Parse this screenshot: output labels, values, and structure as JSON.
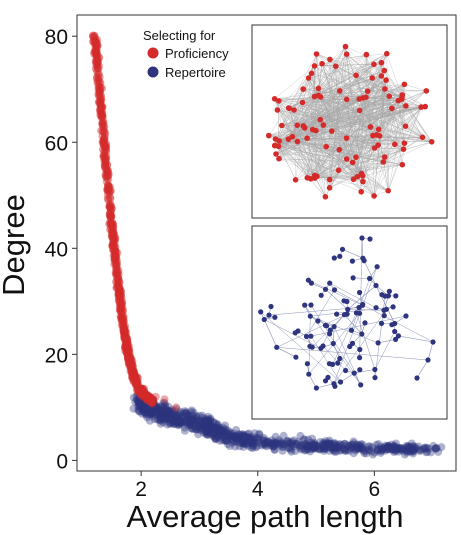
{
  "chart_data": {
    "type": "scatter",
    "xlabel": "Average path length",
    "ylabel": "Degree",
    "xlim": [
      0.9,
      7.4
    ],
    "ylim": [
      -2,
      84
    ],
    "xticks": [
      "2",
      "4",
      "6"
    ],
    "xtick_values": [
      2,
      4,
      6
    ],
    "yticks": [
      "0",
      "20",
      "40",
      "60",
      "80"
    ],
    "ytick_values": [
      0,
      20,
      40,
      60,
      80
    ],
    "legend": {
      "title": "Selecting for",
      "placement": "top-center",
      "entries": [
        {
          "label": "Proficiency",
          "color": "#d42a2a"
        },
        {
          "label": "Repertoire",
          "color": "#2e357e"
        }
      ]
    },
    "series": [
      {
        "name": "Proficiency",
        "color": "#d42a2a",
        "curve_points": [
          [
            1.2,
            80
          ],
          [
            1.25,
            74
          ],
          [
            1.3,
            68
          ],
          [
            1.35,
            62
          ],
          [
            1.4,
            56
          ],
          [
            1.45,
            50
          ],
          [
            1.5,
            44
          ],
          [
            1.55,
            39
          ],
          [
            1.6,
            34
          ],
          [
            1.65,
            29
          ],
          [
            1.7,
            25
          ],
          [
            1.75,
            22
          ],
          [
            1.8,
            19
          ],
          [
            1.85,
            17
          ],
          [
            1.9,
            15
          ],
          [
            2.0,
            13
          ],
          [
            2.1,
            12
          ],
          [
            2.2,
            11
          ]
        ]
      },
      {
        "name": "Repertoire",
        "color": "#2e357e",
        "curve_points": [
          [
            2.0,
            11
          ],
          [
            2.3,
            9
          ],
          [
            2.6,
            8
          ],
          [
            3.0,
            7
          ],
          [
            3.2,
            6
          ],
          [
            3.4,
            5
          ],
          [
            3.7,
            4
          ],
          [
            4.0,
            3.5
          ],
          [
            4.5,
            3
          ],
          [
            5.0,
            2.7
          ],
          [
            5.5,
            2.5
          ],
          [
            6.0,
            2.3
          ],
          [
            6.5,
            2.2
          ],
          [
            7.0,
            2.1
          ]
        ]
      }
    ],
    "insets": [
      {
        "name": "proficiency-network",
        "node_color": "#d42a2a",
        "edge_color": "#a8a8a8"
      },
      {
        "name": "repertoire-network",
        "node_color": "#2e357e",
        "edge_color": "#8c92b8"
      }
    ]
  }
}
